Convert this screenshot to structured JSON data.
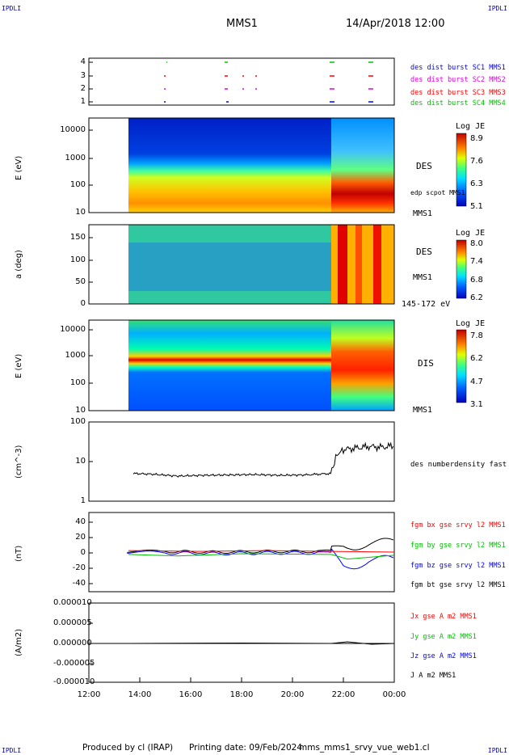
{
  "corners": {
    "tl": "IPDLI",
    "tr": "IPDLI",
    "bl": "IPDLI",
    "br": "IPDLI"
  },
  "header": {
    "spacecraft": "MMS1",
    "date": "14/Apr/2018 12:00"
  },
  "footer": {
    "produced_by": "Produced by cl (IRAP)",
    "printing_date": "Printing date: 09/Feb/2024",
    "filename": "mms_mms1_srvy_vue_web1.cl"
  },
  "time_axis": {
    "ticks": [
      "12:00",
      "14:00",
      "16:00",
      "18:00",
      "20:00",
      "22:00",
      "00:00"
    ]
  },
  "colors": {
    "blue": "#0000ff",
    "magenta": "#e000e0",
    "red": "#ff0000",
    "green": "#00c000",
    "black": "#000000"
  },
  "panels": {
    "burst": {
      "yticks": [
        "4",
        "3",
        "2",
        "1"
      ],
      "legend": [
        {
          "text": "des dist burst SC1 MMS1",
          "color": "#0000ff"
        },
        {
          "text": "des dist burst SC2 MMS2",
          "color": "#e000e0"
        },
        {
          "text": "des dist burst SC3 MMS3",
          "color": "#ff0000"
        },
        {
          "text": "des dist burst SC4 MMS4",
          "color": "#00c000"
        }
      ]
    },
    "des_energy": {
      "ylabel": "E (eV)",
      "yticks": [
        "10000",
        "1000",
        "100",
        "10"
      ],
      "species": "DES",
      "overlay": "edp scpot MMS1",
      "sc": "MMS1",
      "colorbar": {
        "title": "Log JE",
        "ticks": [
          "8.9",
          "7.6",
          "6.3",
          "5.1"
        ]
      }
    },
    "des_pitch": {
      "ylabel": "a (deg)",
      "yticks": [
        "150",
        "100",
        "50",
        "0"
      ],
      "species": "DES",
      "sc": "MMS1",
      "energy_range": "145-172 eV",
      "colorbar": {
        "title": "Log JE",
        "ticks": [
          "8.0",
          "7.4",
          "6.8",
          "6.2"
        ]
      }
    },
    "dis_energy": {
      "ylabel": "E (eV)",
      "yticks": [
        "10000",
        "1000",
        "100",
        "10"
      ],
      "species": "DIS",
      "sc": "MMS1",
      "colorbar": {
        "title": "Log JE",
        "ticks": [
          "7.8",
          "6.2",
          "4.7",
          "3.1"
        ]
      }
    },
    "density": {
      "ylabel": "(cm^-3)",
      "yticks": [
        "100",
        "10",
        "1"
      ],
      "legend": "des numberdensity fast M"
    },
    "bfield": {
      "ylabel": "(nT)",
      "yticks": [
        "40",
        "20",
        "0",
        "-20",
        "-40"
      ],
      "legend": [
        {
          "text": "fgm bx gse srvy l2 MMS1",
          "color": "#ff0000"
        },
        {
          "text": "fgm by gse srvy l2 MMS1",
          "color": "#00c000"
        },
        {
          "text": "fgm bz gse srvy l2 MMS1",
          "color": "#0000ff"
        },
        {
          "text": "fgm bt gse srvy l2 MMS1",
          "color": "#000000"
        }
      ]
    },
    "current": {
      "ylabel": "(A/m2)",
      "yticks": [
        "0.000010",
        "0.000005",
        "0.000000",
        "-0.000005",
        "-0.000010"
      ],
      "legend": [
        {
          "text": "Jx gse A m2 MMS1",
          "color": "#ff0000"
        },
        {
          "text": "Jy gse A m2 MMS1",
          "color": "#00c000"
        },
        {
          "text": "Jz gse A m2 MMS1",
          "color": "#0000ff"
        },
        {
          "text": "J A m2 MMS1",
          "color": "#000000"
        }
      ]
    }
  },
  "chart_data": {
    "type": "line",
    "title": "MMS1 14/Apr/2018 12:00",
    "x_range": [
      "12:00",
      "00:00"
    ],
    "data_start": "13:30",
    "series": [
      {
        "name": "des numberdensity fast M",
        "x": [
          "13:45",
          "14:30",
          "15:30",
          "16:30",
          "17:30",
          "18:30",
          "19:30",
          "20:30",
          "21:00",
          "21:30",
          "21:45",
          "22:00",
          "22:30",
          "23:00",
          "23:30",
          "00:00"
        ],
        "values": [
          5.0,
          4.8,
          4.3,
          4.5,
          4.6,
          4.7,
          4.5,
          4.6,
          4.8,
          5.0,
          15,
          20,
          22,
          24,
          23,
          25
        ]
      },
      {
        "name": "fgm bt gse srvy l2 MMS1",
        "x": [
          "13:30",
          "15:00",
          "17:00",
          "19:00",
          "21:00",
          "21:30",
          "22:00",
          "23:00",
          "00:00"
        ],
        "values": [
          2,
          2,
          1,
          2,
          2,
          2,
          10,
          12,
          12
        ]
      },
      {
        "name": "fgm bz gse srvy l2 MMS1",
        "x": [
          "13:30",
          "15:00",
          "17:00",
          "19:00",
          "21:00",
          "21:30",
          "22:00",
          "23:00",
          "00:00"
        ],
        "values": [
          1,
          0,
          -1,
          0,
          0,
          -1,
          -15,
          -10,
          -12
        ]
      }
    ],
    "ylim_density": [
      1,
      100
    ],
    "yscale_density": "log",
    "ylim_bfield": [
      -50,
      50
    ],
    "ylim_current": [
      -1e-05,
      1e-05
    ]
  }
}
